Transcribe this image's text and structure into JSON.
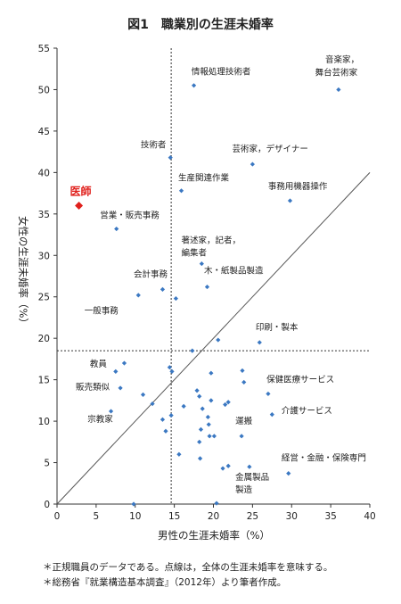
{
  "chart_data": {
    "type": "scatter",
    "title": "図1　職業別の生涯未婚率",
    "xlabel": "男性の生涯未婚率（%）",
    "ylabel": "女性の生涯未婚率（%）",
    "xlim": [
      0,
      40
    ],
    "ylim": [
      0,
      55
    ],
    "xticks": [
      0,
      5,
      10,
      15,
      20,
      25,
      30,
      35,
      40
    ],
    "yticks": [
      0,
      5,
      10,
      15,
      20,
      25,
      30,
      35,
      40,
      45,
      50,
      55
    ],
    "grid": false,
    "diagonal_line": true,
    "dotted_reference": {
      "x": 14.6,
      "y": 18.5
    },
    "colors": {
      "points": "#3b78c2",
      "highlight": "#e0201c",
      "axis": "#333333"
    },
    "highlight": {
      "label": "医師",
      "x": 2.8,
      "y": 36.0
    },
    "labels": [
      {
        "text": "情報処理技術者",
        "x": 17.2,
        "y": 51.8
      },
      {
        "text": "音楽家，",
        "x": 34.3,
        "y": 53.3
      },
      {
        "text": "舞台芸術家",
        "x": 33.0,
        "y": 51.7
      },
      {
        "text": "技術者",
        "x": 10.7,
        "y": 43.0
      },
      {
        "text": "芸術家，デザイナー",
        "x": 22.4,
        "y": 42.5
      },
      {
        "text": "生産関連作業",
        "x": 15.5,
        "y": 39.0
      },
      {
        "text": "事務用機器操作",
        "x": 27.0,
        "y": 38.0
      },
      {
        "text": "営業・販売事務",
        "x": 5.5,
        "y": 34.5
      },
      {
        "text": "著述家，記者，",
        "x": 15.9,
        "y": 31.5
      },
      {
        "text": "編集者",
        "x": 15.9,
        "y": 30.0
      },
      {
        "text": "会計事務",
        "x": 9.8,
        "y": 27.4
      },
      {
        "text": "木・紙製品製造",
        "x": 18.8,
        "y": 27.8
      },
      {
        "text": "一般事務",
        "x": 3.5,
        "y": 23.0
      },
      {
        "text": "印刷・製本",
        "x": 25.4,
        "y": 21.0
      },
      {
        "text": "教員",
        "x": 4.2,
        "y": 16.6
      },
      {
        "text": "販売類似",
        "x": 2.4,
        "y": 13.8
      },
      {
        "text": "保健医療サービス",
        "x": 26.8,
        "y": 14.7
      },
      {
        "text": "宗教家",
        "x": 3.9,
        "y": 9.9
      },
      {
        "text": "介護サービス",
        "x": 28.7,
        "y": 10.9
      },
      {
        "text": "運搬",
        "x": 22.8,
        "y": 9.7
      },
      {
        "text": "経営・金融・保険専門",
        "x": 28.7,
        "y": 5.2
      },
      {
        "text": "金属製品",
        "x": 22.8,
        "y": 2.9
      },
      {
        "text": "製造",
        "x": 22.8,
        "y": 1.4
      }
    ],
    "points": [
      [
        36.0,
        50.0
      ],
      [
        17.5,
        50.5
      ],
      [
        14.5,
        41.8
      ],
      [
        25.0,
        41.0
      ],
      [
        15.9,
        37.8
      ],
      [
        29.8,
        36.6
      ],
      [
        7.6,
        33.2
      ],
      [
        18.5,
        29.0
      ],
      [
        13.5,
        25.9
      ],
      [
        10.4,
        25.2
      ],
      [
        15.2,
        24.8
      ],
      [
        19.2,
        26.2
      ],
      [
        25.9,
        19.5
      ],
      [
        20.6,
        19.8
      ],
      [
        17.3,
        18.5
      ],
      [
        8.6,
        17.0
      ],
      [
        7.5,
        16.0
      ],
      [
        14.4,
        16.5
      ],
      [
        14.7,
        16.0
      ],
      [
        19.7,
        15.8
      ],
      [
        23.7,
        16.1
      ],
      [
        23.9,
        14.7
      ],
      [
        27.0,
        13.3
      ],
      [
        8.1,
        14.0
      ],
      [
        11.0,
        13.2
      ],
      [
        12.2,
        12.1
      ],
      [
        17.9,
        13.7
      ],
      [
        18.2,
        13.0
      ],
      [
        18.6,
        11.5
      ],
      [
        16.2,
        11.8
      ],
      [
        19.7,
        12.5
      ],
      [
        21.5,
        12.0
      ],
      [
        21.9,
        12.3
      ],
      [
        14.6,
        10.7
      ],
      [
        13.5,
        10.2
      ],
      [
        19.3,
        10.5
      ],
      [
        6.9,
        11.2
      ],
      [
        27.5,
        10.8
      ],
      [
        19.4,
        9.6
      ],
      [
        18.4,
        9.0
      ],
      [
        13.9,
        8.8
      ],
      [
        19.5,
        8.2
      ],
      [
        20.1,
        8.2
      ],
      [
        23.6,
        8.2
      ],
      [
        18.2,
        7.5
      ],
      [
        15.6,
        6.0
      ],
      [
        18.3,
        5.5
      ],
      [
        21.2,
        4.3
      ],
      [
        21.9,
        4.6
      ],
      [
        24.6,
        4.5
      ],
      [
        29.6,
        3.7
      ],
      [
        9.8,
        0.0
      ],
      [
        20.4,
        0.1
      ]
    ]
  },
  "notes": [
    "＊正規職員のデータである。点線は，全体の生涯未婚率を意味する。",
    "＊総務省『就業構造基本調査』（2012年）より筆者作成。"
  ]
}
